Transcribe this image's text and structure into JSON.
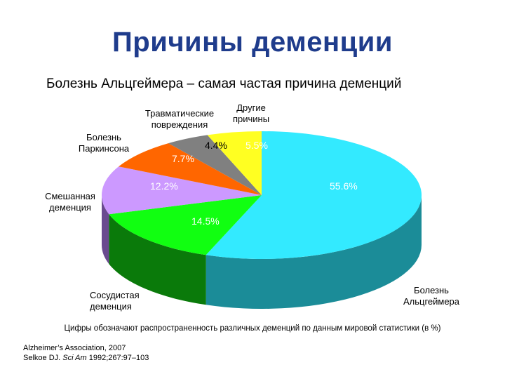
{
  "slide": {
    "title": "Причины деменции",
    "subtitle": "Болезнь Альцгеймера – самая частая причина деменций",
    "footnote": "Цифры обозначают распространенность различных деменций по данным мировой статистики (в %)",
    "sources": {
      "line1": "Alzheimer’s Association, 2007",
      "line2_pre": "Selkoe DJ. ",
      "line2_journal": "Sci Am",
      "line2_post": " 1992;267:97–103"
    }
  },
  "chart_data": {
    "type": "pie",
    "title": "",
    "slices": [
      {
        "label_line1": "Болезнь",
        "label_line2": "Альцгеймера",
        "value": 55.6,
        "value_label": "55.6%",
        "color": "#33eaff",
        "side_color": "#1b8c98"
      },
      {
        "label_line1": "Сосудистая",
        "label_line2": "деменция",
        "value": 14.5,
        "value_label": "14.5%",
        "color": "#11ff11",
        "side_color": "#0a7a0a"
      },
      {
        "label_line1": "Смешанная",
        "label_line2": "деменция",
        "value": 12.2,
        "value_label": "12.2%",
        "color": "#cc99ff",
        "side_color": "#6a4a8f"
      },
      {
        "label_line1": "Болезнь",
        "label_line2": "Паркинсона",
        "value": 7.7,
        "value_label": "7.7%",
        "color": "#ff6600",
        "side_color": "#a03e00"
      },
      {
        "label_line1": "Травматические",
        "label_line2": "повреждения",
        "value": 4.4,
        "value_label": "4.4%",
        "color": "#808080",
        "side_color": "#4a4a4a"
      },
      {
        "label_line1": "Другие",
        "label_line2": "причины",
        "value": 5.5,
        "value_label": "5.5%",
        "color": "#ffff22",
        "side_color": "#a8a800"
      }
    ]
  }
}
